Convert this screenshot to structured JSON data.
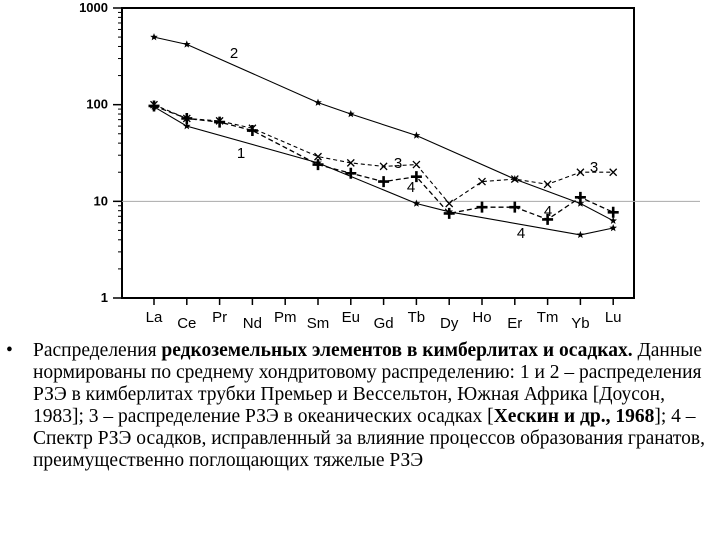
{
  "chart_data": {
    "type": "line",
    "title": "",
    "xlabel": "",
    "ylabel": "",
    "yscale": "log",
    "ylim": [
      1,
      1000
    ],
    "yticks": [
      "1",
      "10",
      "100",
      "1000"
    ],
    "categories": [
      "La",
      "Ce",
      "Pr",
      "Nd",
      "Pm",
      "Sm",
      "Eu",
      "Gd",
      "Tb",
      "Dy",
      "Ho",
      "Er",
      "Tm",
      "Yb",
      "Lu"
    ],
    "reference_line": 10,
    "grid": false,
    "series": [
      {
        "name": "1",
        "marker": "star",
        "points": [
          [
            "La",
            95
          ],
          [
            "Ce",
            60
          ],
          [
            "Sm",
            25
          ],
          [
            "Tb",
            9.5
          ],
          [
            "Dy",
            7.8
          ],
          [
            "Yb",
            4.5
          ],
          [
            "Lu",
            5.3
          ]
        ]
      },
      {
        "name": "2",
        "marker": "star",
        "points": [
          [
            "La",
            500
          ],
          [
            "Ce",
            420
          ],
          [
            "Sm",
            105
          ],
          [
            "Eu",
            80
          ],
          [
            "Tb",
            48
          ],
          [
            "Er",
            17
          ],
          [
            "Yb",
            9.5
          ],
          [
            "Lu",
            6.3
          ]
        ]
      },
      {
        "name": "3",
        "marker": "x",
        "points": [
          [
            "La",
            100
          ],
          [
            "Ce",
            72
          ],
          [
            "Pr",
            68
          ],
          [
            "Nd",
            57
          ],
          [
            "Sm",
            29
          ],
          [
            "Eu",
            25
          ],
          [
            "Gd",
            23
          ],
          [
            "Tb",
            24
          ],
          [
            "Dy",
            9.5
          ],
          [
            "Ho",
            16
          ],
          [
            "Er",
            17
          ],
          [
            "Tm",
            15
          ],
          [
            "Yb",
            20
          ],
          [
            "Lu",
            20
          ]
        ]
      },
      {
        "name": "4",
        "marker": "plus",
        "points": [
          [
            "La",
            97
          ],
          [
            "Ce",
            72
          ],
          [
            "Pr",
            66
          ],
          [
            "Nd",
            54
          ],
          [
            "Sm",
            24
          ],
          [
            "Eu",
            19.5
          ],
          [
            "Gd",
            16
          ],
          [
            "Tb",
            18
          ],
          [
            "Dy",
            7.5
          ],
          [
            "Ho",
            8.7
          ],
          [
            "Er",
            8.7
          ],
          [
            "Tm",
            6.5
          ],
          [
            "Yb",
            11
          ],
          [
            "Lu",
            7.7
          ]
        ]
      }
    ]
  },
  "caption": {
    "bullet": "•",
    "intro": "Распределения ",
    "bold_title": "редкоземельных элементов в кимберлитах и осадках.",
    "text_1": " Данные нормированы по среднему хондритовому распределению: 1 и 2 – распределения РЗЭ в кимберлитах трубки Премьер и Вессельтон, Южная Африка [Доусон, 1983]; 3 – распределение РЗЭ в океанических осадках [",
    "bold_ref": "Хескин и др., 1968",
    "text_2": "]; 4 – Спектр РЗЭ осадков, исправленный за влияние процессов образования гранатов, преимущественно поглощающих тяжелые РЗЭ"
  }
}
